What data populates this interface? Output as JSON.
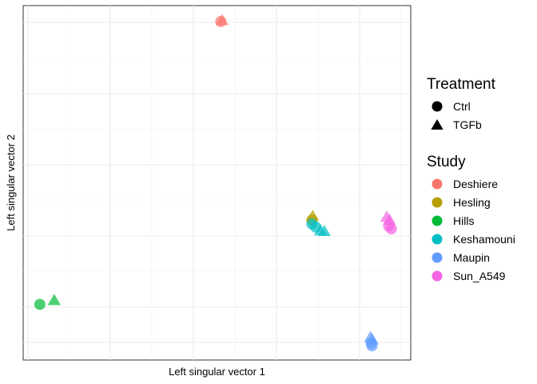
{
  "chart_data": {
    "type": "scatter",
    "xlabel": "Left singular vector 1",
    "ylabel": "Left singular vector 2",
    "xlim": [
      0,
      1
    ],
    "ylim": [
      0,
      1
    ],
    "grid": true,
    "legend_position": "right",
    "legends": [
      {
        "title": "Treatment",
        "kind": "shape",
        "entries": [
          {
            "label": "Ctrl",
            "shape": "circle"
          },
          {
            "label": "TGFb",
            "shape": "triangle"
          }
        ]
      },
      {
        "title": "Study",
        "kind": "color",
        "entries": [
          {
            "label": "Deshiere",
            "color": "#F8766D"
          },
          {
            "label": "Hesling",
            "color": "#B79F00"
          },
          {
            "label": "Hills",
            "color": "#00BA38"
          },
          {
            "label": "Keshamouni",
            "color": "#00BFC4"
          },
          {
            "label": "Maupin",
            "color": "#619CFF"
          },
          {
            "label": "Sun_A549",
            "color": "#F564E3"
          }
        ]
      }
    ],
    "points": [
      {
        "study": "Deshiere",
        "treatment": "Ctrl",
        "x": 0.51,
        "y": 0.955
      },
      {
        "study": "Deshiere",
        "treatment": "TGFb",
        "x": 0.513,
        "y": 0.957
      },
      {
        "study": "Hesling",
        "treatment": "Ctrl",
        "x": 0.745,
        "y": 0.395
      },
      {
        "study": "Hesling",
        "treatment": "TGFb",
        "x": 0.747,
        "y": 0.405
      },
      {
        "study": "Hills",
        "treatment": "Ctrl",
        "x": 0.043,
        "y": 0.157
      },
      {
        "study": "Hills",
        "treatment": "TGFb",
        "x": 0.08,
        "y": 0.167
      },
      {
        "study": "Keshamouni",
        "treatment": "Ctrl",
        "x": 0.745,
        "y": 0.384
      },
      {
        "study": "Keshamouni",
        "treatment": "Ctrl",
        "x": 0.755,
        "y": 0.375
      },
      {
        "study": "Keshamouni",
        "treatment": "TGFb",
        "x": 0.767,
        "y": 0.364
      },
      {
        "study": "Keshamouni",
        "treatment": "TGFb",
        "x": 0.777,
        "y": 0.362
      },
      {
        "study": "Maupin",
        "treatment": "Ctrl",
        "x": 0.898,
        "y": 0.047
      },
      {
        "study": "Maupin",
        "treatment": "Ctrl",
        "x": 0.9,
        "y": 0.04
      },
      {
        "study": "Maupin",
        "treatment": "TGFb",
        "x": 0.896,
        "y": 0.063
      },
      {
        "study": "Maupin",
        "treatment": "TGFb",
        "x": 0.901,
        "y": 0.056
      },
      {
        "study": "Sun_A549",
        "treatment": "Ctrl",
        "x": 0.943,
        "y": 0.378
      },
      {
        "study": "Sun_A549",
        "treatment": "Ctrl",
        "x": 0.95,
        "y": 0.37
      },
      {
        "study": "Sun_A549",
        "treatment": "TGFb",
        "x": 0.938,
        "y": 0.402
      },
      {
        "study": "Sun_A549",
        "treatment": "TGFb",
        "x": 0.945,
        "y": 0.394
      }
    ]
  }
}
